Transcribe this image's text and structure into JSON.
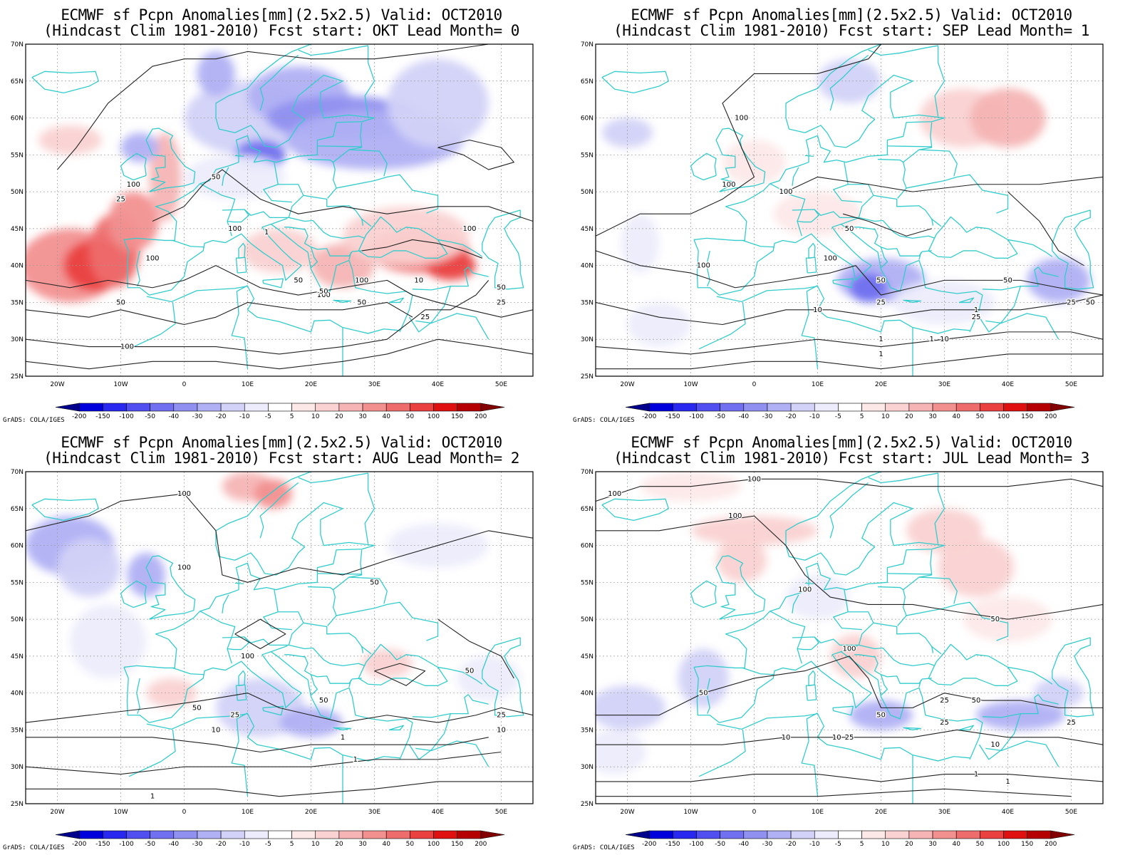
{
  "colors": {
    "coast": "#33cccc",
    "contour": "#222222",
    "grid": "#9a9a9a",
    "frame": "#000000"
  },
  "colorbar": {
    "labels": [
      "-200",
      "-150",
      "-100",
      "-50",
      "-40",
      "-30",
      "-20",
      "-10",
      "-5",
      "5",
      "10",
      "20",
      "30",
      "40",
      "50",
      "100",
      "150",
      "200"
    ],
    "colors": [
      "#00008c",
      "#0000dc",
      "#2828f0",
      "#5050f0",
      "#7070f0",
      "#9090f0",
      "#b0b0f4",
      "#d2d2f8",
      "#ececfc",
      "#ffffff",
      "#fde8e8",
      "#fad2d2",
      "#f6b4b4",
      "#f29090",
      "#ee6c6c",
      "#ea4040",
      "#e01010",
      "#b40000",
      "#820000"
    ],
    "credit": "GrADS: COLA/IGES"
  },
  "axes": {
    "x_ticks": [
      "20W",
      "10W",
      "0",
      "10E",
      "20E",
      "30E",
      "40E",
      "50E"
    ],
    "y_ticks": [
      "25N",
      "30N",
      "35N",
      "40N",
      "45N",
      "50N",
      "55N",
      "60N",
      "65N",
      "70N"
    ]
  },
  "panels": [
    {
      "title_line1": "ECMWF sf Pcpn Anomalies[mm](2.5x2.5) Valid: OCT2010",
      "title_line2": "(Hindcast Clim 1981-2010) Fcst start: OKT  Lead Month= 0",
      "contour_labels": [
        "100",
        "100",
        "50",
        "100",
        "50",
        "100",
        "100",
        "50",
        "50",
        "100",
        "100",
        "50",
        "25",
        "25",
        "10",
        "1",
        "50",
        "25"
      ]
    },
    {
      "title_line1": "ECMWF sf Pcpn Anomalies[mm](2.5x2.5) Valid: OCT2010",
      "title_line2": "(Hindcast Clim 1981-2010) Fcst start: SEP  Lead Month= 1",
      "contour_labels": [
        "100",
        "100",
        "50",
        "100",
        "100",
        "100",
        "50",
        "25",
        "50",
        "25",
        "10",
        "50",
        "25",
        "1",
        "10",
        "1",
        "1",
        "1"
      ]
    },
    {
      "title_line1": "ECMWF sf Pcpn Anomalies[mm](2.5x2.5) Valid: OCT2010",
      "title_line2": "(Hindcast Clim 1981-2010) Fcst start: AUG  Lead Month= 2",
      "contour_labels": [
        "100",
        "100",
        "50",
        "100",
        "50",
        "50",
        "25",
        "10",
        "1",
        "50",
        "25",
        "10",
        "1",
        "1"
      ]
    },
    {
      "title_line1": "ECMWF sf Pcpn Anomalies[mm](2.5x2.5) Valid: OCT2010",
      "title_line2": "(Hindcast Clim 1981-2010) Fcst start: JUL  Lead Month= 3",
      "contour_labels": [
        "100",
        "100",
        "100",
        "100",
        "50",
        "100",
        "50",
        "50",
        "25",
        "50",
        "25",
        "25",
        "10",
        "10",
        "1",
        "10",
        "1",
        "25"
      ]
    }
  ]
}
